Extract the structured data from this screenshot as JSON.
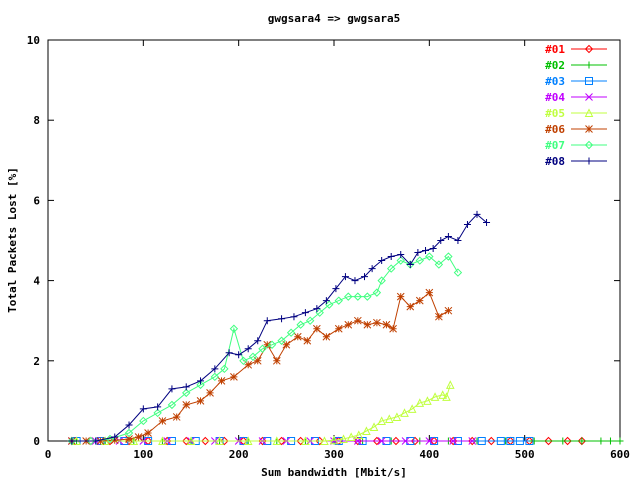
{
  "chart_data": {
    "type": "line",
    "title": "gwgsara4 => gwgsara5",
    "xlabel": "Sum bandwidth [Mbit/s]",
    "ylabel": "Total Packets Lost [%]",
    "xlim": [
      0,
      600
    ],
    "ylim": [
      0,
      10
    ],
    "xticks": [
      "0",
      "100",
      "200",
      "300",
      "400",
      "500",
      "600"
    ],
    "yticks": [
      "0",
      "2",
      "4",
      "6",
      "8",
      "10"
    ],
    "grid": false,
    "legend_position": "top-right",
    "series": [
      {
        "name": "#01",
        "color": "#ff0000",
        "marker": "diamond",
        "x": [
          25,
          45,
          65,
          85,
          105,
          125,
          145,
          165,
          185,
          205,
          225,
          245,
          265,
          285,
          305,
          325,
          345,
          365,
          385,
          405,
          425,
          445,
          465,
          485,
          505,
          525,
          545,
          560
        ],
        "y": [
          0,
          0,
          0,
          0,
          0,
          0,
          0,
          0,
          0,
          0,
          0,
          0,
          0,
          0,
          0,
          0,
          0,
          0,
          0,
          0,
          0,
          0,
          0,
          0,
          0,
          0,
          0,
          0
        ]
      },
      {
        "name": "#02",
        "color": "#00c000",
        "marker": "plus",
        "x": [
          30,
          60,
          90,
          120,
          150,
          180,
          210,
          240,
          270,
          300,
          330,
          360,
          390,
          420,
          450,
          480,
          510,
          540,
          560,
          580,
          590,
          600
        ],
        "y": [
          0,
          0,
          0,
          0,
          0,
          0,
          0,
          0,
          0,
          0,
          0,
          0,
          0,
          0,
          0,
          0,
          0,
          0,
          0,
          0,
          0,
          0
        ]
      },
      {
        "name": "#03",
        "color": "#0080ff",
        "marker": "square",
        "x": [
          30,
          55,
          80,
          105,
          130,
          155,
          180,
          205,
          230,
          255,
          280,
          305,
          330,
          355,
          380,
          405,
          430,
          455,
          475,
          485,
          495,
          505
        ],
        "y": [
          0,
          0,
          0,
          0,
          0,
          0,
          0,
          0,
          0,
          0,
          0,
          0,
          0,
          0,
          0,
          0,
          0,
          0,
          0,
          0,
          0,
          0
        ]
      },
      {
        "name": "#04",
        "color": "#c000ff",
        "marker": "cross",
        "x": [
          25,
          50,
          75,
          100,
          125,
          150,
          175,
          200,
          225,
          250,
          275,
          300,
          325,
          350,
          375,
          400,
          425,
          445
        ],
        "y": [
          0,
          0,
          0,
          0,
          0,
          0,
          0,
          0,
          0,
          0,
          0,
          0,
          0,
          0,
          0,
          0,
          0,
          0
        ]
      },
      {
        "name": "#05",
        "color": "#c0ff40",
        "marker": "triangle",
        "x": [
          30,
          60,
          90,
          120,
          150,
          180,
          210,
          240,
          270,
          290,
          300,
          310,
          318,
          326,
          334,
          342,
          350,
          358,
          366,
          374,
          382,
          390,
          398,
          406,
          414,
          418,
          422
        ],
        "y": [
          0,
          0,
          0,
          0,
          0,
          0,
          0,
          0,
          0,
          0,
          0.02,
          0.05,
          0.1,
          0.15,
          0.25,
          0.35,
          0.5,
          0.55,
          0.6,
          0.7,
          0.8,
          0.95,
          1.0,
          1.1,
          1.15,
          1.1,
          1.4
        ]
      },
      {
        "name": "#06",
        "color": "#c04000",
        "marker": "star",
        "x": [
          25,
          40,
          55,
          70,
          85,
          95,
          105,
          120,
          135,
          145,
          160,
          170,
          182,
          195,
          210,
          220,
          230,
          240,
          250,
          262,
          272,
          282,
          292,
          305,
          315,
          325,
          335,
          345,
          355,
          362,
          370,
          380,
          390,
          400,
          410,
          420
        ],
        "y": [
          0,
          0,
          0,
          0.02,
          0.05,
          0.1,
          0.2,
          0.5,
          0.6,
          0.9,
          1.0,
          1.2,
          1.5,
          1.6,
          1.9,
          2.0,
          2.4,
          2.0,
          2.4,
          2.6,
          2.5,
          2.8,
          2.6,
          2.8,
          2.9,
          3.0,
          2.9,
          2.95,
          2.9,
          2.8,
          3.6,
          3.35,
          3.5,
          3.7,
          3.1,
          3.25
        ]
      },
      {
        "name": "#07",
        "color": "#40ff80",
        "marker": "diamond",
        "x": [
          25,
          45,
          65,
          85,
          100,
          115,
          130,
          145,
          160,
          175,
          185,
          195,
          205,
          215,
          225,
          235,
          245,
          255,
          265,
          275,
          285,
          295,
          305,
          315,
          325,
          335,
          345,
          350,
          360,
          370,
          380,
          390,
          400,
          410,
          420,
          430
        ],
        "y": [
          0,
          0,
          0.05,
          0.2,
          0.5,
          0.7,
          0.9,
          1.2,
          1.4,
          1.6,
          1.8,
          2.8,
          2.0,
          2.1,
          2.3,
          2.4,
          2.5,
          2.7,
          2.9,
          3.0,
          3.2,
          3.4,
          3.5,
          3.6,
          3.6,
          3.6,
          3.7,
          4.0,
          4.3,
          4.5,
          4.4,
          4.5,
          4.6,
          4.4,
          4.6,
          4.2
        ]
      },
      {
        "name": "#08",
        "color": "#000080",
        "marker": "plus",
        "x": [
          25,
          50,
          70,
          85,
          100,
          115,
          130,
          145,
          160,
          175,
          190,
          200,
          210,
          220,
          230,
          245,
          258,
          270,
          282,
          292,
          302,
          312,
          322,
          332,
          340,
          350,
          360,
          370,
          380,
          388,
          396,
          404,
          412,
          420,
          430,
          440,
          450,
          460
        ],
        "y": [
          0,
          0,
          0.1,
          0.4,
          0.8,
          0.85,
          1.3,
          1.35,
          1.5,
          1.8,
          2.2,
          2.15,
          2.3,
          2.5,
          3.0,
          3.05,
          3.1,
          3.2,
          3.3,
          3.5,
          3.8,
          4.1,
          4.0,
          4.1,
          4.3,
          4.5,
          4.6,
          4.65,
          4.4,
          4.7,
          4.75,
          4.8,
          5.0,
          5.1,
          5.0,
          5.4,
          5.65,
          5.45
        ]
      }
    ]
  }
}
